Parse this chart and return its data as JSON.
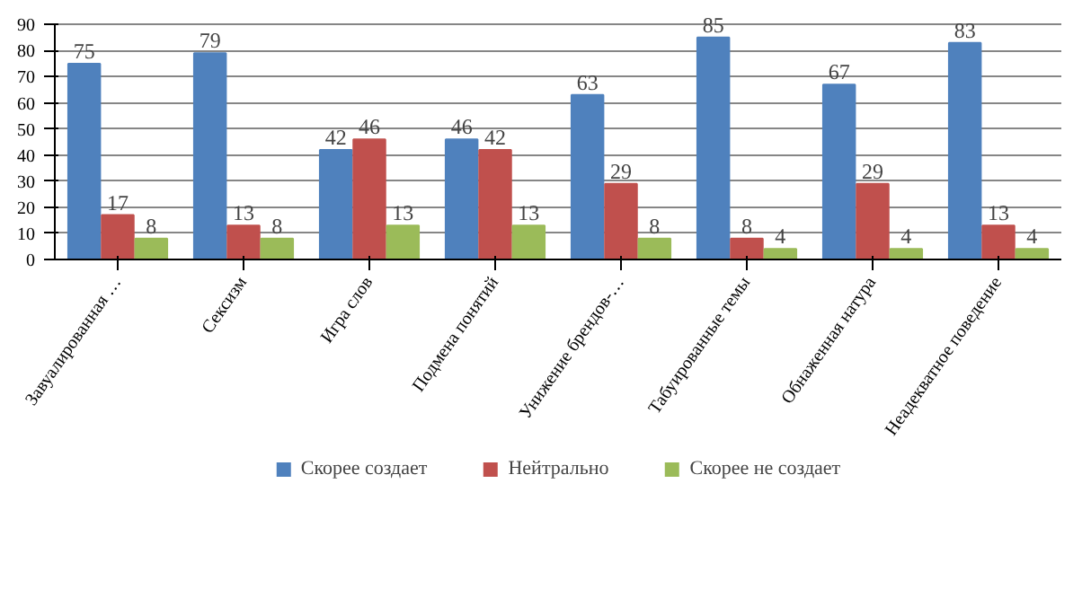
{
  "chart_data": {
    "type": "bar",
    "categories": [
      "Завуалированная …",
      "Сексизм",
      "Игра слов",
      "Подмена понятий",
      "Унижение брендов-…",
      "Табуированные темы",
      "Обнаженная натура",
      "Неадекватное поведение"
    ],
    "series": [
      {
        "name": "Скорее создает",
        "color": "#4f81bd",
        "values": [
          75,
          79,
          42,
          46,
          63,
          85,
          67,
          83
        ]
      },
      {
        "name": "Нейтрально",
        "color": "#c0504d",
        "values": [
          17,
          13,
          46,
          42,
          29,
          8,
          29,
          13
        ]
      },
      {
        "name": "Скорее не создает",
        "color": "#9bbb59",
        "values": [
          8,
          8,
          13,
          13,
          8,
          4,
          4,
          4
        ]
      }
    ],
    "ylim": [
      0,
      90
    ],
    "yticks": [
      0,
      10,
      20,
      30,
      40,
      50,
      60,
      70,
      80,
      90
    ],
    "grid": "y",
    "legend": "bottom",
    "data_labels": true
  }
}
